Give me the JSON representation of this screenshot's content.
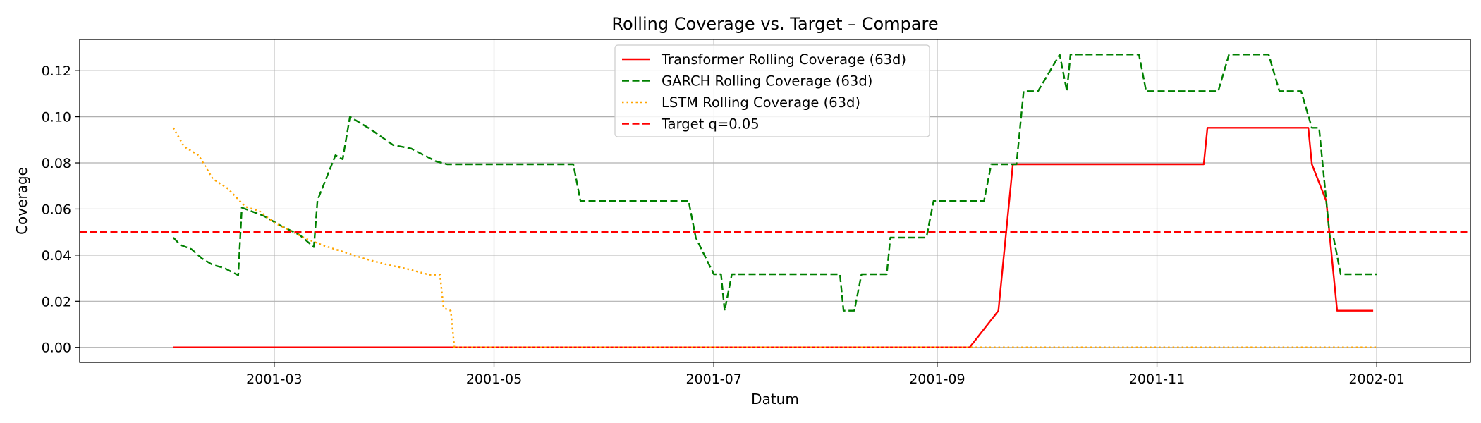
{
  "chart_data": {
    "type": "line",
    "title": "Rolling Coverage vs. Target – Compare",
    "xlabel": "Datum",
    "ylabel": "Coverage",
    "x_axis": {
      "type": "date",
      "range": [
        "2001-01-06",
        "2002-01-27"
      ],
      "ticks": [
        "2001-03-01",
        "2001-05-01",
        "2001-07-01",
        "2001-09-01",
        "2001-11-01",
        "2002-01-01"
      ],
      "tick_labels": [
        "2001-03",
        "2001-05",
        "2001-07",
        "2001-09",
        "2001-11",
        "2002-01"
      ]
    },
    "y_axis": {
      "range": [
        -0.0065,
        0.1335
      ],
      "ticks": [
        0.0,
        0.02,
        0.04,
        0.06,
        0.08,
        0.1,
        0.12
      ],
      "tick_labels": [
        "0.00",
        "0.02",
        "0.04",
        "0.06",
        "0.08",
        "0.10",
        "0.12"
      ]
    },
    "grid": true,
    "legend_position": "top-center",
    "series": [
      {
        "name": "Transformer Rolling Coverage (63d)",
        "color": "#ff0000",
        "line_style": "solid",
        "points": [
          [
            "2001-02-01",
            0.0
          ],
          [
            "2001-09-10",
            0.0
          ],
          [
            "2001-09-18",
            0.0159
          ],
          [
            "2001-09-22",
            0.0794
          ],
          [
            "2001-11-14",
            0.0794
          ],
          [
            "2001-11-15",
            0.0952
          ],
          [
            "2001-12-13",
            0.0952
          ],
          [
            "2001-12-14",
            0.0794
          ],
          [
            "2001-12-18",
            0.0635
          ],
          [
            "2001-12-21",
            0.0159
          ],
          [
            "2001-12-31",
            0.0159
          ]
        ]
      },
      {
        "name": "GARCH Rolling Coverage (63d)",
        "color": "#008000",
        "line_style": "dashed",
        "points": [
          [
            "2001-02-01",
            0.0476
          ],
          [
            "2001-02-03",
            0.0444
          ],
          [
            "2001-02-06",
            0.0426
          ],
          [
            "2001-02-09",
            0.0385
          ],
          [
            "2001-02-12",
            0.0357
          ],
          [
            "2001-02-15",
            0.0345
          ],
          [
            "2001-02-19",
            0.0313
          ],
          [
            "2001-02-20",
            0.0606
          ],
          [
            "2001-02-26",
            0.0571
          ],
          [
            "2001-03-03",
            0.0526
          ],
          [
            "2001-03-08",
            0.0488
          ],
          [
            "2001-03-12",
            0.0435
          ],
          [
            "2001-03-13",
            0.0638
          ],
          [
            "2001-03-18",
            0.0833
          ],
          [
            "2001-03-20",
            0.0816
          ],
          [
            "2001-03-22",
            0.1
          ],
          [
            "2001-03-28",
            0.0943
          ],
          [
            "2001-04-03",
            0.0877
          ],
          [
            "2001-04-08",
            0.0862
          ],
          [
            "2001-04-15",
            0.0806
          ],
          [
            "2001-04-18",
            0.0794
          ],
          [
            "2001-05-23",
            0.0794
          ],
          [
            "2001-05-25",
            0.0635
          ],
          [
            "2001-06-24",
            0.0635
          ],
          [
            "2001-06-26",
            0.0476
          ],
          [
            "2001-07-01",
            0.0317
          ],
          [
            "2001-07-03",
            0.0317
          ],
          [
            "2001-07-04",
            0.0159
          ],
          [
            "2001-07-06",
            0.0317
          ],
          [
            "2001-08-05",
            0.0317
          ],
          [
            "2001-08-06",
            0.0159
          ],
          [
            "2001-08-09",
            0.0159
          ],
          [
            "2001-08-11",
            0.0317
          ],
          [
            "2001-08-18",
            0.0317
          ],
          [
            "2001-08-19",
            0.0476
          ],
          [
            "2001-08-29",
            0.0476
          ],
          [
            "2001-08-31",
            0.0635
          ],
          [
            "2001-09-14",
            0.0635
          ],
          [
            "2001-09-16",
            0.0794
          ],
          [
            "2001-09-23",
            0.0794
          ],
          [
            "2001-09-25",
            0.1111
          ],
          [
            "2001-09-29",
            0.1111
          ],
          [
            "2001-10-05",
            0.127
          ],
          [
            "2001-10-07",
            0.1111
          ],
          [
            "2001-10-08",
            0.127
          ],
          [
            "2001-10-27",
            0.127
          ],
          [
            "2001-10-29",
            0.1111
          ],
          [
            "2001-11-18",
            0.1111
          ],
          [
            "2001-11-21",
            0.127
          ],
          [
            "2001-12-02",
            0.127
          ],
          [
            "2001-12-05",
            0.1111
          ],
          [
            "2001-12-11",
            0.1111
          ],
          [
            "2001-12-14",
            0.0952
          ],
          [
            "2001-12-16",
            0.0952
          ],
          [
            "2001-12-18",
            0.0635
          ],
          [
            "2001-12-19",
            0.0476
          ],
          [
            "2001-12-20",
            0.0476
          ],
          [
            "2001-12-22",
            0.0317
          ],
          [
            "2002-01-01",
            0.0317
          ]
        ]
      },
      {
        "name": "LSTM Rolling Coverage (63d)",
        "color": "#ffa500",
        "line_style": "dotted",
        "points": [
          [
            "2001-02-01",
            0.0952
          ],
          [
            "2001-02-04",
            0.087
          ],
          [
            "2001-02-08",
            0.0833
          ],
          [
            "2001-02-12",
            0.073
          ],
          [
            "2001-02-16",
            0.069
          ],
          [
            "2001-02-21",
            0.061
          ],
          [
            "2001-02-25",
            0.059
          ],
          [
            "2001-03-01",
            0.054
          ],
          [
            "2001-03-05",
            0.051
          ],
          [
            "2001-03-10",
            0.047
          ],
          [
            "2001-03-15",
            0.044
          ],
          [
            "2001-03-21",
            0.041
          ],
          [
            "2001-03-26",
            0.0385
          ],
          [
            "2001-04-01",
            0.036
          ],
          [
            "2001-04-07",
            0.034
          ],
          [
            "2001-04-13",
            0.0315
          ],
          [
            "2001-04-16",
            0.0315
          ],
          [
            "2001-04-17",
            0.017
          ],
          [
            "2001-04-19",
            0.0159
          ],
          [
            "2001-04-20",
            0.0
          ],
          [
            "2002-01-01",
            0.0
          ]
        ]
      },
      {
        "name": "Target q=0.05",
        "color": "#ff0000",
        "line_style": "dashed",
        "constant": 0.05
      }
    ]
  }
}
